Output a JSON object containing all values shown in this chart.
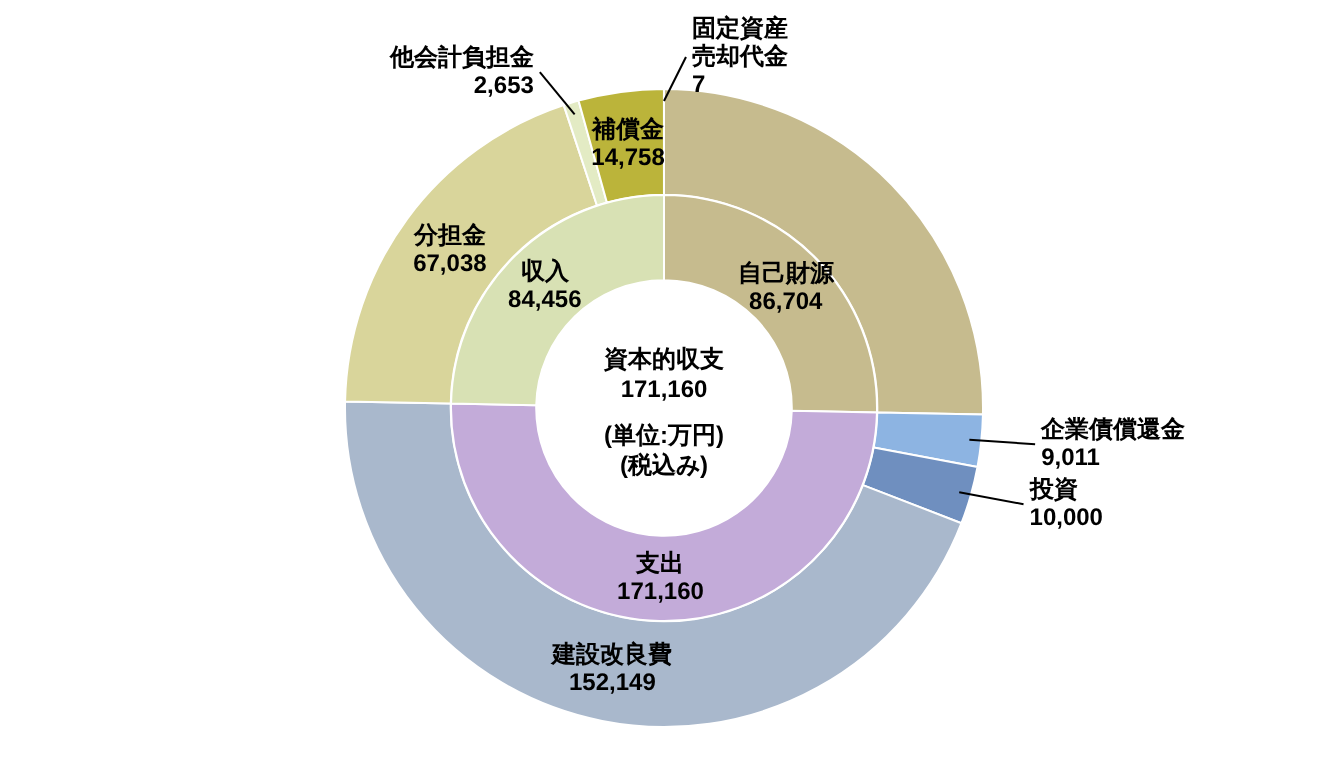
{
  "chart_data": [
    {
      "type": "donut",
      "legend": false,
      "categories": [
        null,
        "企業債償還金",
        "投資",
        "建設改良費",
        "分担金",
        "他会計負担金",
        "補償金",
        "固定資産売却代金"
      ],
      "values": [
        86704,
        9011,
        10000,
        152149,
        67038,
        2653,
        14758,
        7
      ],
      "value_labels": [
        null,
        "9,011",
        "10,000",
        "152,149",
        "67,038",
        "2,653",
        "14,758",
        "7"
      ],
      "colors": [
        "#c6bb8e",
        "#8db4e2",
        "#6f8fbf",
        "#a9b8cc",
        "#d9d59b",
        "#e3ebc4",
        "#bbb43a",
        "#e3ebc4"
      ]
    },
    {
      "type": "donut",
      "legend": false,
      "title": "資本的収支",
      "annotations": [
        "171,160",
        "(単位:万円)",
        "(税込み)"
      ],
      "categories": [
        "自己財源",
        "支出",
        "収入"
      ],
      "values": [
        86704,
        171160,
        84456
      ],
      "value_labels": [
        "86,704",
        "171,160",
        "84,456"
      ],
      "colors": [
        "#c6bb8e",
        "#c3abd9",
        "#d8e1b4"
      ]
    }
  ]
}
